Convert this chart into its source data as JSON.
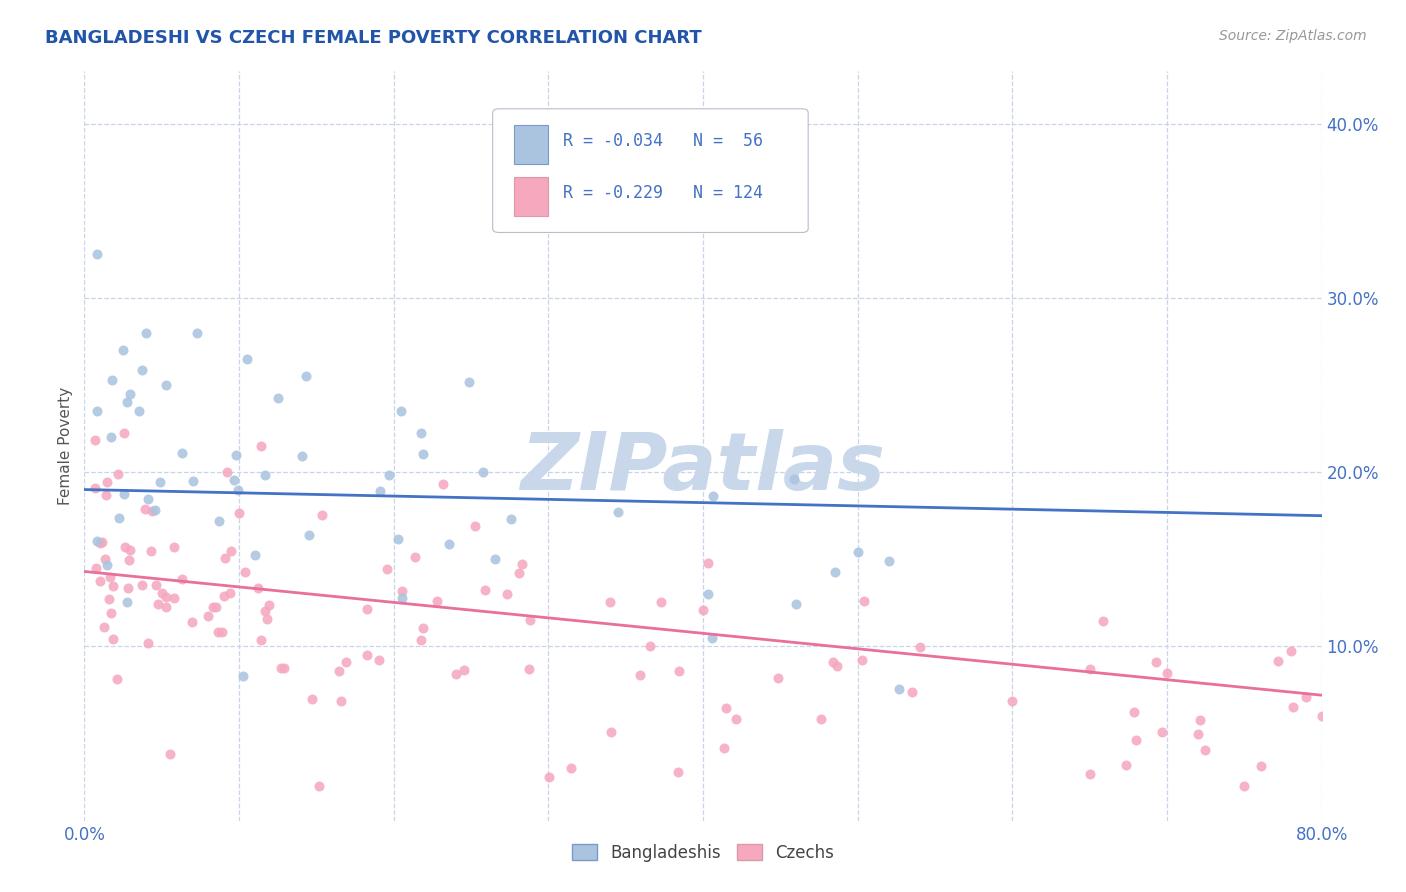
{
  "title": "BANGLADESHI VS CZECH FEMALE POVERTY CORRELATION CHART",
  "source": "Source: ZipAtlas.com",
  "ylabel": "Female Poverty",
  "xlim": [
    0.0,
    0.8
  ],
  "ylim": [
    0.0,
    0.43
  ],
  "yticks": [
    0.1,
    0.2,
    0.3,
    0.4
  ],
  "ytick_labels": [
    "10.0%",
    "20.0%",
    "30.0%",
    "40.0%"
  ],
  "color_bangladeshi": "#aac4e0",
  "color_czech": "#f5a8be",
  "line_color_bangladeshi": "#4472c4",
  "line_color_czech": "#e8709a",
  "tick_color": "#4472c4",
  "watermark_color": "#c8d8ea",
  "bg_color": "#ffffff",
  "grid_color": "#c8d4e8",
  "bang_line_x0": 0.0,
  "bang_line_y0": 0.19,
  "bang_line_x1": 0.8,
  "bang_line_y1": 0.175,
  "czech_line_x0": 0.0,
  "czech_line_y0": 0.143,
  "czech_line_x1": 0.8,
  "czech_line_y1": 0.072
}
